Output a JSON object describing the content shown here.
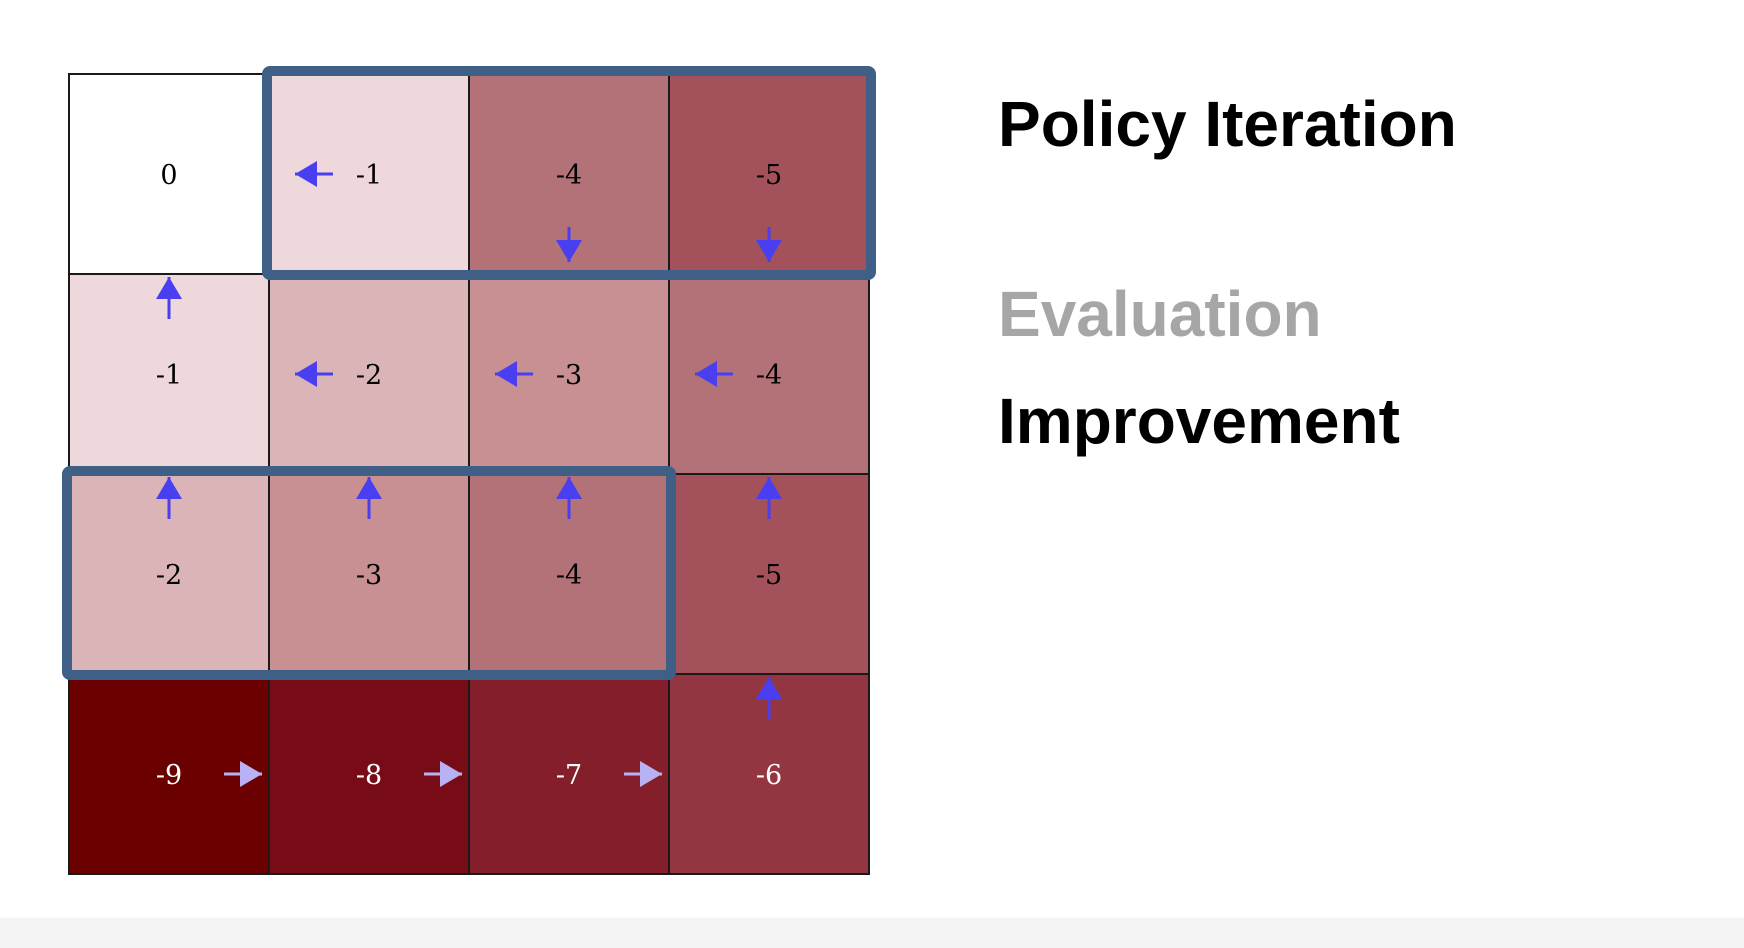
{
  "title": "Policy Iteration",
  "steps": [
    {
      "label": "Evaluation",
      "color": "#a6a6a6",
      "state": "inactive"
    },
    {
      "label": "Improvement",
      "color": "#000000",
      "state": "active"
    }
  ],
  "colors": {
    "grid_line": "#1a1a1a",
    "highlight_border": "#3f5f86",
    "arrow_blue": "#4a3ff0",
    "arrow_light": "#b8b2f5"
  },
  "grid": {
    "rows": 4,
    "cols": 4,
    "cells": [
      [
        {
          "value": "0",
          "fill": "#ffffff",
          "arrow": ""
        },
        {
          "value": "-1",
          "fill": "#efd8dc",
          "arrow": "left"
        },
        {
          "value": "-4",
          "fill": "#b27278",
          "arrow": "down"
        },
        {
          "value": "-5",
          "fill": "#a3525c",
          "arrow": "down"
        }
      ],
      [
        {
          "value": "-1",
          "fill": "#efd8dc",
          "arrow": "up"
        },
        {
          "value": "-2",
          "fill": "#dbb4b8",
          "arrow": "left"
        },
        {
          "value": "-3",
          "fill": "#c99094",
          "arrow": "left"
        },
        {
          "value": "-4",
          "fill": "#b27278",
          "arrow": "left"
        }
      ],
      [
        {
          "value": "-2",
          "fill": "#dbb4b8",
          "arrow": "up"
        },
        {
          "value": "-3",
          "fill": "#c99094",
          "arrow": "up"
        },
        {
          "value": "-4",
          "fill": "#b27278",
          "arrow": "up"
        },
        {
          "value": "-5",
          "fill": "#a3525c",
          "arrow": "up"
        }
      ],
      [
        {
          "value": "-9",
          "fill": "#6b0000",
          "arrow": "right"
        },
        {
          "value": "-8",
          "fill": "#770c16",
          "arrow": "right"
        },
        {
          "value": "-7",
          "fill": "#841e2a",
          "arrow": "right"
        },
        {
          "value": "-6",
          "fill": "#933642",
          "arrow": "up"
        }
      ]
    ],
    "highlights": [
      {
        "row": 0,
        "col_start": 1,
        "col_end": 3
      },
      {
        "row": 2,
        "col_start": 0,
        "col_end": 2
      }
    ]
  }
}
